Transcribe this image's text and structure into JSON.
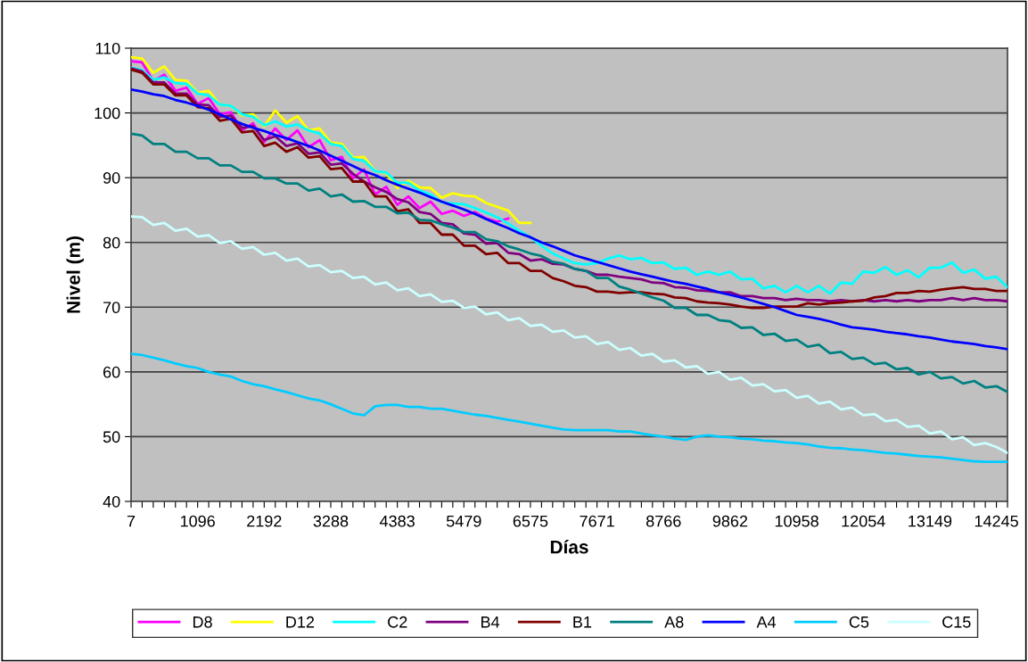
{
  "chart_data": {
    "type": "line",
    "xlabel": "Días",
    "ylabel": "Nivel (m)",
    "categories": [
      "7",
      null,
      null,
      null,
      null,
      null,
      "1096",
      null,
      null,
      null,
      null,
      null,
      "2192",
      null,
      null,
      null,
      null,
      null,
      "3288",
      null,
      null,
      null,
      null,
      null,
      "4383",
      null,
      null,
      null,
      null,
      null,
      "5479",
      null,
      null,
      null,
      null,
      null,
      "6575",
      null,
      null,
      null,
      null,
      null,
      "7671",
      null,
      null,
      null,
      null,
      null,
      "8766",
      null,
      null,
      null,
      null,
      null,
      "9862",
      null,
      null,
      null,
      null,
      null,
      "10958",
      null,
      null,
      null,
      null,
      null,
      "12054",
      null,
      null,
      null,
      null,
      null,
      "13149",
      null,
      null,
      null,
      null,
      null,
      "14245",
      null
    ],
    "ylim": [
      40,
      110
    ],
    "yticks": [
      40,
      50,
      60,
      70,
      80,
      90,
      100,
      110
    ],
    "grid": "y",
    "legend": "bottom",
    "series": [
      {
        "name": "D8",
        "color": "#ff00ff",
        "values": [
          108.0,
          107.8,
          104.9,
          105.9,
          103.4,
          103.9,
          101.4,
          102.3,
          99.8,
          100.1,
          97.3,
          98.4,
          95.5,
          97.6,
          95.8,
          97.3,
          94.7,
          95.8,
          92.7,
          93.2,
          89.9,
          91.3,
          87.4,
          88.6,
          85.8,
          87.1,
          85.3,
          86.3,
          84.4,
          84.9,
          84.1,
          84.7,
          83.7,
          83.2,
          83.7,
          null,
          null,
          null,
          null,
          null,
          null,
          null,
          null,
          null,
          null,
          null,
          null,
          null,
          null,
          null,
          null,
          null,
          null,
          null,
          null,
          null,
          null,
          null,
          null,
          null,
          null,
          null,
          null,
          null,
          null,
          null,
          null,
          null,
          null,
          null,
          null,
          null,
          null,
          null,
          null,
          null,
          null,
          null,
          null,
          null
        ]
      },
      {
        "name": "D12",
        "color": "#ffff00",
        "values": [
          108.6,
          108.4,
          106.2,
          107.2,
          105.1,
          105.0,
          103.1,
          103.4,
          101.3,
          101.1,
          99.6,
          99.8,
          97.9,
          100.4,
          98.5,
          99.5,
          97.3,
          97.6,
          95.4,
          95.2,
          93.1,
          93.2,
          91.0,
          90.7,
          88.4,
          89.5,
          88.5,
          88.4,
          86.9,
          87.6,
          87.2,
          87.1,
          86.1,
          85.5,
          84.9,
          83.0,
          83.0,
          null,
          null,
          null,
          null,
          null,
          null,
          null,
          null,
          null,
          null,
          null,
          null,
          null,
          null,
          null,
          null,
          null,
          null,
          null,
          null,
          null,
          null,
          null,
          null,
          null,
          null,
          null,
          null,
          null,
          null,
          null,
          null,
          null,
          null,
          null,
          null,
          null,
          null,
          null,
          null,
          null,
          null,
          null
        ]
      },
      {
        "name": "C2",
        "color": "#00ffff",
        "values": [
          107.0,
          106.6,
          105.1,
          105.5,
          104.6,
          104.5,
          103.0,
          102.7,
          101.3,
          101.1,
          99.8,
          99.4,
          98.1,
          98.7,
          97.9,
          98.2,
          97.3,
          96.8,
          95.2,
          94.9,
          92.9,
          92.6,
          91.0,
          90.8,
          89.2,
          89.2,
          88.0,
          87.4,
          86.2,
          86.0,
          85.9,
          85.3,
          84.6,
          83.9,
          82.9,
          81.8,
          80.8,
          79.5,
          78.3,
          77.5,
          76.8,
          76.6,
          76.8,
          77.5,
          78.0,
          77.4,
          77.6,
          76.8,
          76.9,
          75.9,
          76.1,
          75.0,
          75.5,
          75.0,
          75.5,
          74.3,
          74.4,
          72.9,
          73.3,
          72.3,
          73.3,
          72.3,
          73.3,
          72.1,
          73.8,
          73.6,
          75.5,
          75.3,
          76.2,
          75.0,
          75.7,
          74.6,
          76.1,
          76.1,
          76.9,
          75.3,
          75.8,
          74.4,
          74.7,
          73.1
        ]
      },
      {
        "name": "B4",
        "color": "#800080",
        "values": [
          106.9,
          106.4,
          104.7,
          104.7,
          103.0,
          103.0,
          101.3,
          101.2,
          99.4,
          99.6,
          97.7,
          98.0,
          95.8,
          96.4,
          94.9,
          95.3,
          93.7,
          93.9,
          92.0,
          92.2,
          90.6,
          89.4,
          88.5,
          87.8,
          86.7,
          86.2,
          84.7,
          84.4,
          83.0,
          82.8,
          81.4,
          81.2,
          79.8,
          79.9,
          78.4,
          78.2,
          77.2,
          77.4,
          76.7,
          76.6,
          75.9,
          75.6,
          75.0,
          75.0,
          74.7,
          74.5,
          74.3,
          73.8,
          73.7,
          73.1,
          73.0,
          72.6,
          72.5,
          72.3,
          72.3,
          71.7,
          71.7,
          71.4,
          71.4,
          71.1,
          71.3,
          71.1,
          71.1,
          70.9,
          71.1,
          70.9,
          71.1,
          70.9,
          71.1,
          70.9,
          71.1,
          70.9,
          71.1,
          71.1,
          71.4,
          71.1,
          71.4,
          71.1,
          71.1,
          70.9
        ]
      },
      {
        "name": "B1",
        "color": "#800000",
        "values": [
          106.7,
          106.2,
          104.4,
          104.4,
          102.7,
          102.7,
          100.9,
          100.7,
          98.8,
          99.1,
          97.0,
          97.2,
          94.9,
          95.4,
          94.0,
          94.7,
          93.1,
          93.3,
          91.3,
          91.5,
          89.4,
          89.4,
          87.1,
          87.1,
          84.8,
          85.1,
          83.0,
          83.0,
          81.2,
          81.2,
          79.5,
          79.5,
          78.2,
          78.4,
          76.8,
          76.8,
          75.6,
          75.6,
          74.5,
          74.0,
          73.3,
          73.1,
          72.4,
          72.4,
          72.2,
          72.3,
          72.3,
          72.1,
          72.0,
          71.5,
          71.4,
          70.9,
          70.7,
          70.6,
          70.4,
          70.1,
          69.9,
          69.9,
          70.1,
          70.1,
          70.1,
          70.6,
          70.4,
          70.6,
          70.7,
          70.9,
          71.0,
          71.5,
          71.7,
          72.2,
          72.2,
          72.5,
          72.4,
          72.7,
          72.9,
          73.1,
          72.8,
          72.8,
          72.5,
          72.5
        ]
      },
      {
        "name": "A8",
        "color": "#008080",
        "values": [
          96.8,
          96.5,
          95.2,
          95.2,
          94.0,
          94.0,
          93.0,
          93.0,
          91.9,
          91.9,
          90.9,
          90.9,
          89.9,
          89.9,
          89.1,
          89.1,
          88.0,
          88.3,
          87.1,
          87.4,
          86.3,
          86.4,
          85.5,
          85.5,
          84.5,
          84.6,
          83.5,
          83.4,
          82.8,
          82.3,
          81.6,
          81.6,
          80.5,
          80.2,
          79.4,
          78.9,
          78.3,
          77.9,
          77.0,
          76.7,
          75.9,
          75.6,
          74.5,
          74.5,
          73.2,
          72.7,
          72.1,
          71.5,
          71.0,
          69.9,
          69.9,
          68.8,
          68.8,
          68.0,
          67.8,
          66.8,
          66.9,
          65.7,
          65.9,
          64.8,
          65.0,
          63.9,
          64.2,
          62.9,
          63.1,
          62.0,
          62.2,
          61.2,
          61.4,
          60.4,
          60.6,
          59.6,
          60.0,
          59.0,
          59.2,
          58.2,
          58.6,
          57.6,
          57.8,
          56.9
        ]
      },
      {
        "name": "A4",
        "color": "#0000ff",
        "values": [
          103.6,
          103.3,
          102.9,
          102.6,
          102.0,
          101.6,
          101.1,
          100.5,
          99.8,
          99.0,
          98.3,
          97.7,
          97.2,
          96.6,
          96.1,
          95.5,
          94.9,
          94.2,
          93.4,
          92.6,
          91.8,
          91.0,
          90.4,
          89.6,
          88.9,
          88.3,
          87.7,
          87.0,
          86.3,
          85.7,
          85.1,
          84.4,
          83.6,
          82.9,
          82.2,
          81.4,
          80.8,
          80.0,
          79.4,
          78.7,
          78.0,
          77.5,
          77.0,
          76.5,
          76.0,
          75.5,
          75.1,
          74.7,
          74.3,
          73.9,
          73.6,
          73.2,
          72.8,
          72.3,
          71.9,
          71.5,
          71.0,
          70.5,
          70.0,
          69.4,
          68.8,
          68.5,
          68.2,
          67.8,
          67.3,
          66.9,
          66.7,
          66.5,
          66.2,
          66.0,
          65.8,
          65.5,
          65.3,
          65.0,
          64.7,
          64.5,
          64.3,
          64.0,
          63.8,
          63.5
        ]
      },
      {
        "name": "C5",
        "color": "#00ccff",
        "values": [
          62.8,
          62.6,
          62.2,
          61.8,
          61.3,
          60.9,
          60.6,
          60.0,
          59.6,
          59.3,
          58.6,
          58.1,
          57.8,
          57.3,
          56.9,
          56.4,
          55.9,
          55.6,
          55.0,
          54.3,
          53.6,
          53.3,
          54.7,
          54.9,
          54.9,
          54.6,
          54.6,
          54.3,
          54.3,
          54.0,
          53.7,
          53.4,
          53.2,
          52.9,
          52.6,
          52.3,
          52.0,
          51.7,
          51.4,
          51.1,
          51.0,
          51.0,
          51.0,
          51.0,
          50.8,
          50.8,
          50.5,
          50.2,
          50.0,
          49.7,
          49.5,
          50.0,
          50.2,
          50.0,
          49.9,
          49.7,
          49.6,
          49.4,
          49.3,
          49.1,
          49.0,
          48.8,
          48.5,
          48.3,
          48.2,
          48.0,
          47.9,
          47.7,
          47.5,
          47.4,
          47.2,
          47.0,
          46.9,
          46.8,
          46.6,
          46.4,
          46.2,
          46.1,
          46.1,
          46.1
        ]
      },
      {
        "name": "C15",
        "color": "#ccffff",
        "values": [
          84.0,
          83.9,
          82.7,
          83.0,
          81.8,
          82.1,
          80.9,
          81.1,
          79.9,
          80.2,
          79.0,
          79.3,
          78.1,
          78.4,
          77.2,
          77.5,
          76.3,
          76.5,
          75.4,
          75.6,
          74.5,
          74.7,
          73.5,
          73.8,
          72.6,
          72.9,
          71.7,
          72.0,
          70.8,
          71.0,
          69.9,
          70.1,
          68.9,
          69.2,
          68.0,
          68.3,
          67.1,
          67.3,
          66.2,
          66.4,
          65.3,
          65.5,
          64.3,
          64.6,
          63.4,
          63.7,
          62.5,
          62.8,
          61.6,
          61.8,
          60.7,
          60.9,
          59.7,
          60.0,
          58.8,
          59.1,
          57.9,
          58.1,
          57.0,
          57.2,
          56.0,
          56.3,
          55.1,
          55.4,
          54.2,
          54.5,
          53.3,
          53.5,
          52.4,
          52.6,
          51.5,
          51.7,
          50.5,
          50.8,
          49.6,
          49.9,
          48.7,
          49.0,
          48.4,
          47.5
        ]
      }
    ]
  }
}
